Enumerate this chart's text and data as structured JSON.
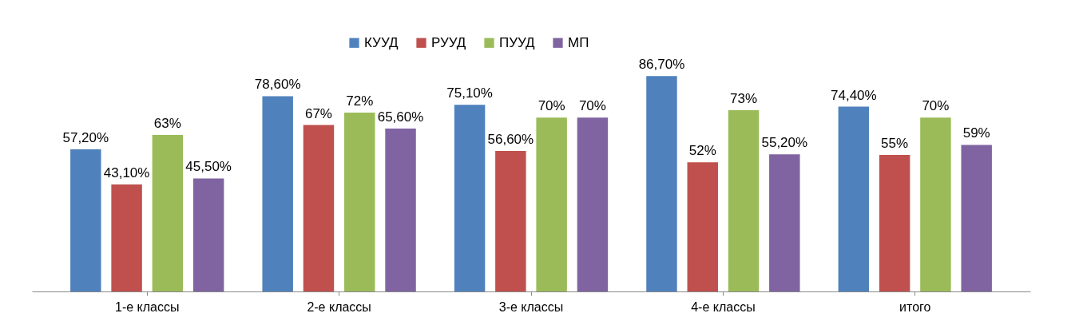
{
  "chart_data": {
    "type": "bar",
    "categories": [
      "1-е классы",
      "2-е классы",
      "3-е классы",
      "4-е классы",
      "итого"
    ],
    "series": [
      {
        "name": "КУУД",
        "color": "#4f81bd",
        "values": [
          57.2,
          78.6,
          75.1,
          86.7,
          74.4
        ],
        "value_labels": [
          "57,20%",
          "78,60%",
          "75,10%",
          "86,70%",
          "74,40%"
        ]
      },
      {
        "name": "РУУД",
        "color": "#c0504d",
        "values": [
          43.1,
          67,
          56.6,
          52,
          55
        ],
        "value_labels": [
          "43,10%",
          "67%",
          "56,60%",
          "52%",
          "55%"
        ]
      },
      {
        "name": "ПУУД",
        "color": "#9bbb59",
        "values": [
          63,
          72,
          70,
          73,
          70
        ],
        "value_labels": [
          "63%",
          "72%",
          "70%",
          "73%",
          "70%"
        ]
      },
      {
        "name": "МП",
        "color": "#8064a2",
        "values": [
          45.5,
          65.6,
          70,
          55.2,
          59
        ],
        "value_labels": [
          "45,50%",
          "65,60%",
          "70%",
          "55,20%",
          "59%"
        ]
      }
    ],
    "legend": "top"
  }
}
